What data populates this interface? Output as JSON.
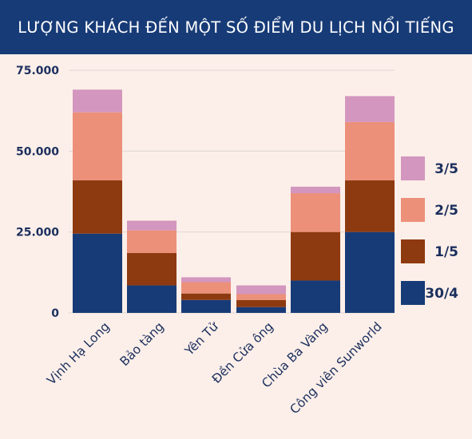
{
  "header": {
    "title": "LƯỢNG KHÁCH ĐẾN MỘT SỐ ĐIỂM DU LỊCH NỔI TIẾNG"
  },
  "chart_data": {
    "type": "bar",
    "stacked": true,
    "title": "LƯỢNG KHÁCH ĐẾN MỘT SỐ ĐIỂM DU LỊCH NỔI TIẾNG",
    "xlabel": "",
    "ylabel": "",
    "categories": [
      "Vịnh Hạ Long",
      "Bảo tàng",
      "Yên Tử",
      "Đền Cửa ông",
      "Chùa Ba Vàng",
      "Công viên Sunworld"
    ],
    "yticks": [
      0,
      25000,
      50000,
      75000
    ],
    "ytick_labels": [
      "0",
      "25.000",
      "50.000",
      "75.000"
    ],
    "ylim": [
      0,
      75000
    ],
    "grid": "horizontal",
    "legend_position": "right",
    "series": [
      {
        "name": "30/4",
        "color": "#173b77",
        "values": [
          24500,
          8500,
          4000,
          1800,
          10000,
          25000
        ]
      },
      {
        "name": "1/5",
        "color": "#8e3a10",
        "values": [
          16500,
          10000,
          2000,
          2200,
          15000,
          16000
        ]
      },
      {
        "name": "2/5",
        "color": "#ec907a",
        "values": [
          21000,
          7000,
          3500,
          1800,
          12000,
          18000
        ]
      },
      {
        "name": "3/5",
        "color": "#d396be",
        "values": [
          7000,
          3000,
          1500,
          2700,
          2000,
          8000
        ]
      }
    ],
    "legend_order": [
      "3/5",
      "2/5",
      "1/5",
      "30/4"
    ]
  }
}
